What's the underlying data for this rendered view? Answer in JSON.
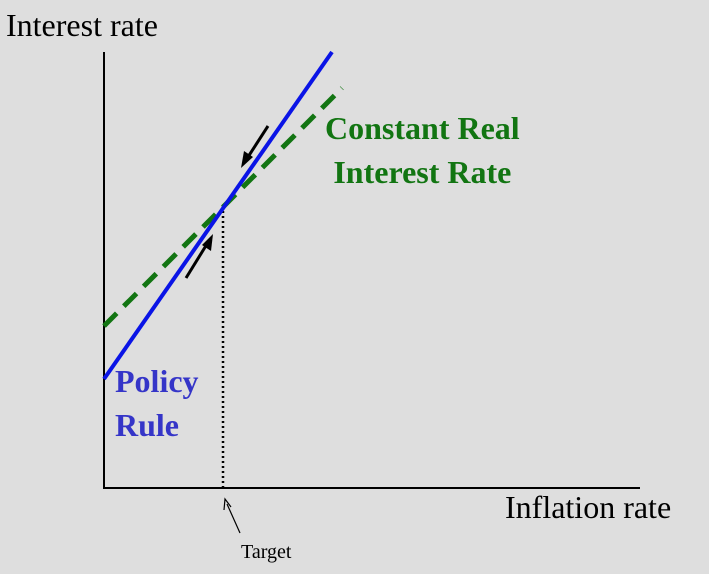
{
  "labels": {
    "y_axis": "Interest rate",
    "x_axis": "Inflation rate",
    "target": "Target",
    "constant_real": [
      "Constant Real",
      "Interest Rate"
    ],
    "policy_rule": [
      "Policy",
      "Rule"
    ]
  },
  "colors": {
    "background": "#dedede",
    "axis": "#000000",
    "policy_rule": "#0a14e6",
    "constant_real": "#127512",
    "policy_label": "#3535c8",
    "constant_label": "#127512",
    "arrow": "#000000"
  },
  "chart_data": {
    "type": "line",
    "title": "",
    "xlabel": "Inflation rate",
    "ylabel": "Interest rate",
    "series": [
      {
        "name": "Policy Rule",
        "style": "solid"
      },
      {
        "name": "Constant Real Interest Rate",
        "style": "dashed"
      }
    ],
    "annotations": [
      {
        "text": "Target",
        "marks": "inflation target where the two lines intersect"
      }
    ],
    "arrows": [
      "toward intersection from above",
      "toward intersection from below"
    ]
  }
}
